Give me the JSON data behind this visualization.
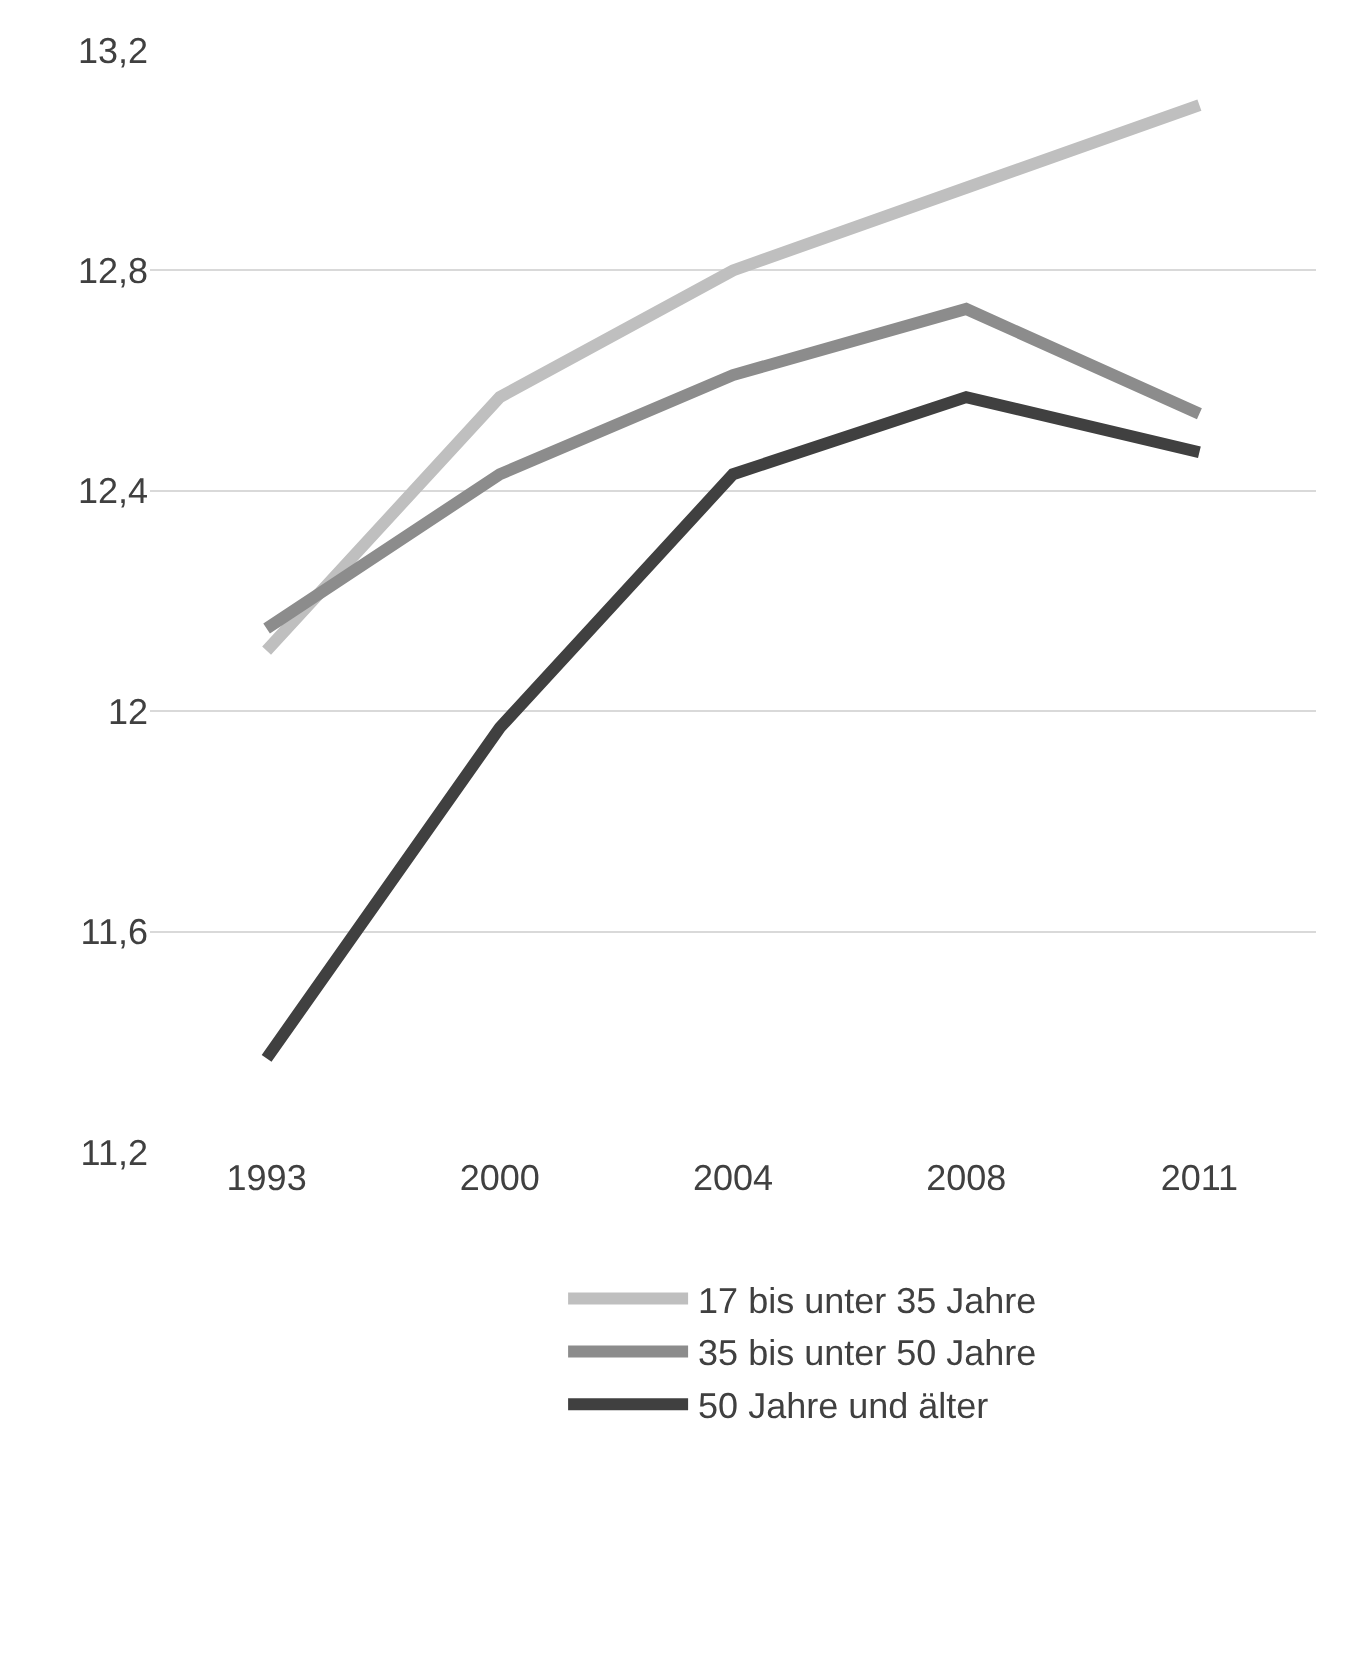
{
  "chart_data": {
    "type": "line",
    "categories": [
      "1993",
      "2000",
      "2004",
      "2008",
      "2011"
    ],
    "series": [
      {
        "name": "17 bis unter 35 Jahre",
        "color": "#bfbfbf",
        "values": [
          12.11,
          12.57,
          12.8,
          12.95,
          13.1
        ]
      },
      {
        "name": "35 bis unter 50 Jahre",
        "color": "#8c8c8c",
        "values": [
          12.15,
          12.43,
          12.61,
          12.73,
          12.54
        ]
      },
      {
        "name": "50 Jahre und älter",
        "color": "#404040",
        "values": [
          11.37,
          11.97,
          12.43,
          12.57,
          12.47
        ]
      }
    ],
    "ylim": [
      11.2,
      13.2
    ],
    "yticks": [
      {
        "value": 11.2,
        "label": "11,2"
      },
      {
        "value": 11.6,
        "label": "11,6"
      },
      {
        "value": 12,
        "label": "12"
      },
      {
        "value": 12.4,
        "label": "12,4"
      },
      {
        "value": 12.8,
        "label": "12,8"
      },
      {
        "value": 13.2,
        "label": "13,2"
      }
    ],
    "grid": "y",
    "legend": "bottom",
    "marker": "none",
    "line_style": "solid"
  }
}
